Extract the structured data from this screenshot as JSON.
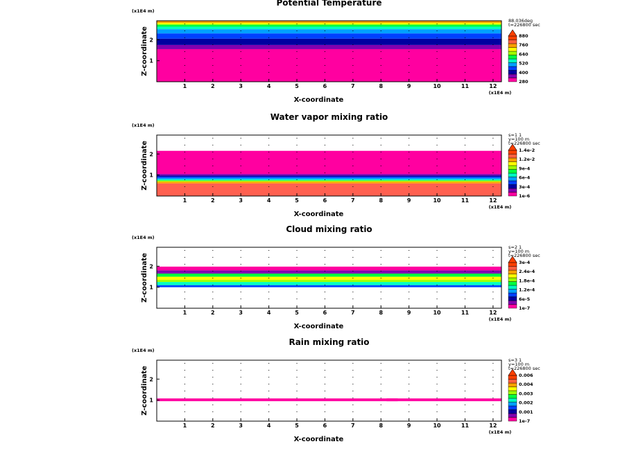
{
  "chart_data": [
    {
      "type": "heatmap",
      "title": "Potential Temperature",
      "xlabel": "X-coordinate",
      "ylabel": "Z-coordinate",
      "x_unit": "(x1E4 m)",
      "z_unit": "(x1E4 m)",
      "xlim": [
        0,
        12.3
      ],
      "zlim": [
        0,
        2.9
      ],
      "x_ticks": [
        "1",
        "2",
        "3",
        "4",
        "5",
        "6",
        "7",
        "8",
        "9",
        "10",
        "11",
        "12"
      ],
      "z_ticks": [
        "1",
        "2"
      ],
      "info": [
        "88.036deg",
        "t=226800 sec"
      ],
      "legend": {
        "labels": [
          "880",
          "760",
          "640",
          "520",
          "400",
          "280"
        ],
        "colors": [
          "#ff00a0",
          "#8000b0",
          "#0000a0",
          "#0040ff",
          "#00a0ff",
          "#00ffc0",
          "#00ff40",
          "#a0ff00",
          "#ffff00",
          "#ffa000",
          "#ff6040",
          "#ff4000"
        ]
      },
      "bands": [
        {
          "z0": 0.0,
          "z1": 1.55,
          "color": "#ff00a0"
        },
        {
          "z0": 1.55,
          "z1": 1.75,
          "color": "#8000b0"
        },
        {
          "z0": 1.75,
          "z1": 2.05,
          "color": "#0000a0"
        },
        {
          "z0": 2.05,
          "z1": 2.3,
          "color": "#0040ff"
        },
        {
          "z0": 2.3,
          "z1": 2.5,
          "color": "#00a0ff"
        },
        {
          "z0": 2.5,
          "z1": 2.62,
          "color": "#00ffc0"
        },
        {
          "z0": 2.62,
          "z1": 2.72,
          "color": "#00ff40"
        },
        {
          "z0": 2.72,
          "z1": 2.8,
          "color": "#ffff00"
        },
        {
          "z0": 2.8,
          "z1": 2.9,
          "color": "#ffa000"
        }
      ]
    },
    {
      "type": "heatmap",
      "title": "Water vapor mixing ratio",
      "xlabel": "X-coordinate",
      "ylabel": "Z-coordinate",
      "x_unit": "(x1E4 m)",
      "z_unit": "(x1E4 m)",
      "xlim": [
        0,
        12.3
      ],
      "zlim": [
        0,
        2.9
      ],
      "x_ticks": [
        "1",
        "2",
        "3",
        "4",
        "5",
        "6",
        "7",
        "8",
        "9",
        "10",
        "11",
        "12"
      ],
      "z_ticks": [
        "1",
        "2"
      ],
      "info": [
        "s=1 1",
        "y=100 m",
        "t=226800 sec"
      ],
      "legend": {
        "labels": [
          "1.4e-2",
          "1.2e-2",
          "9e-4",
          "6e-4",
          "3e-4",
          "1e-6"
        ],
        "colors": [
          "#ff00a0",
          "#8000b0",
          "#0000a0",
          "#0040ff",
          "#00a0ff",
          "#00ffc0",
          "#00ff40",
          "#a0ff00",
          "#ffff00",
          "#ffa000",
          "#ff6040",
          "#ff4000"
        ]
      },
      "bands": [
        {
          "z0": 0.0,
          "z1": 0.6,
          "color": "#ff6050"
        },
        {
          "z0": 0.6,
          "z1": 0.68,
          "color": "#ffa000"
        },
        {
          "z0": 0.68,
          "z1": 0.74,
          "color": "#a0ff00"
        },
        {
          "z0": 0.74,
          "z1": 0.8,
          "color": "#00ffc0"
        },
        {
          "z0": 0.8,
          "z1": 0.86,
          "color": "#00a0ff"
        },
        {
          "z0": 0.86,
          "z1": 0.92,
          "color": "#0040ff"
        },
        {
          "z0": 0.92,
          "z1": 0.98,
          "color": "#0000a0"
        },
        {
          "z0": 0.98,
          "z1": 1.05,
          "color": "#8000b0"
        },
        {
          "z0": 1.05,
          "z1": 2.15,
          "color": "#ff00a0"
        }
      ]
    },
    {
      "type": "heatmap",
      "title": "Cloud mixing ratio",
      "xlabel": "X-coordinate",
      "ylabel": "Z-coordinate",
      "x_unit": "(x1E4 m)",
      "z_unit": "(x1E4 m)",
      "xlim": [
        0,
        12.3
      ],
      "zlim": [
        0,
        2.9
      ],
      "x_ticks": [
        "1",
        "2",
        "3",
        "4",
        "5",
        "6",
        "7",
        "8",
        "9",
        "10",
        "11",
        "12"
      ],
      "z_ticks": [
        "1",
        "2"
      ],
      "info": [
        "s=2 1",
        "y=100 m",
        "t=226800 sec"
      ],
      "legend": {
        "labels": [
          "3e-4",
          "2.4e-4",
          "1.8e-4",
          "1.2e-4",
          "6e-5",
          "1e-7"
        ],
        "colors": [
          "#ff00a0",
          "#8000b0",
          "#0000a0",
          "#0040ff",
          "#00a0ff",
          "#00ffc0",
          "#00ff40",
          "#a0ff00",
          "#ffff00",
          "#ffa000",
          "#ff6040",
          "#ff4000"
        ]
      },
      "bands": [
        {
          "z0": 1.0,
          "z1": 1.1,
          "color": "#0040ff"
        },
        {
          "z0": 1.1,
          "z1": 1.25,
          "color": "#00ffc0"
        },
        {
          "z0": 1.25,
          "z1": 1.35,
          "color": "#a0ff00"
        },
        {
          "z0": 1.35,
          "z1": 1.5,
          "color": "#ffff00"
        },
        {
          "z0": 1.5,
          "z1": 1.65,
          "color": "#00ff40"
        },
        {
          "z0": 1.65,
          "z1": 1.8,
          "color": "#8000b0"
        },
        {
          "z0": 1.8,
          "z1": 1.98,
          "color": "#ff00a0"
        }
      ]
    },
    {
      "type": "heatmap",
      "title": "Rain mixing ratio",
      "xlabel": "X-coordinate",
      "ylabel": "Z-coordinate",
      "x_unit": "(x1E4 m)",
      "z_unit": "(x1E4 m)",
      "xlim": [
        0,
        12.3
      ],
      "zlim": [
        0,
        2.9
      ],
      "x_ticks": [
        "1",
        "2",
        "3",
        "4",
        "5",
        "6",
        "7",
        "8",
        "9",
        "10",
        "11",
        "12"
      ],
      "z_ticks": [
        "1",
        "2"
      ],
      "info": [
        "s=3 1",
        "y=100 m",
        "t=226800 sec"
      ],
      "legend": {
        "labels": [
          "0.006",
          "0.004",
          "0.003",
          "0.002",
          "0.001",
          "1e-7"
        ],
        "colors": [
          "#ff00a0",
          "#8000b0",
          "#0000a0",
          "#0040ff",
          "#00a0ff",
          "#00ffc0",
          "#00ff40",
          "#a0ff00",
          "#ffff00",
          "#ffa000",
          "#ff6040",
          "#ff4000"
        ]
      },
      "bands": [
        {
          "z0": 0.95,
          "z1": 1.08,
          "color": "#ff00a0",
          "x0": 0.0,
          "x1": 8.6
        },
        {
          "z0": 0.95,
          "z1": 1.08,
          "color": "#ff00a0",
          "x0": 8.2,
          "x1": 12.3
        }
      ]
    }
  ]
}
